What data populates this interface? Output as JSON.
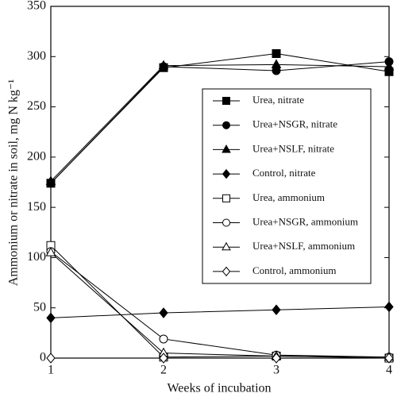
{
  "chart_data": {
    "type": "line",
    "x_label": "Weeks of incubation",
    "y_label": "Ammonium or nitrate in soil, mg N kg⁻¹",
    "x": [
      1,
      2,
      3,
      4
    ],
    "xlim": [
      1,
      4
    ],
    "xticks": [
      1,
      2,
      3,
      4
    ],
    "ylim": [
      0,
      350
    ],
    "yticks": [
      0,
      50,
      100,
      150,
      200,
      250,
      300,
      350
    ],
    "legend": "right",
    "series": [
      {
        "name": "Urea, nitrate",
        "color": "#000000",
        "marker": "square",
        "filled": true,
        "values": [
          174,
          289,
          303,
          285
        ]
      },
      {
        "name": "Urea+NSGR, nitrate",
        "color": "#000000",
        "marker": "circle",
        "filled": true,
        "values": [
          174,
          290,
          286,
          295
        ]
      },
      {
        "name": "Urea+NSLF, nitrate",
        "color": "#000000",
        "marker": "triangle",
        "filled": true,
        "values": [
          176,
          291,
          292,
          290
        ]
      },
      {
        "name": "Control, nitrate",
        "color": "#000000",
        "marker": "diamond",
        "filled": true,
        "values": [
          40,
          45,
          48,
          51
        ]
      },
      {
        "name": "Urea, ammonium",
        "color": "#000000",
        "marker": "square",
        "filled": false,
        "values": [
          112,
          1,
          2,
          0
        ]
      },
      {
        "name": "Urea+NSGR, ammonium",
        "color": "#000000",
        "marker": "circle",
        "filled": false,
        "values": [
          106,
          19,
          3,
          1
        ]
      },
      {
        "name": "Urea+NSLF, ammonium",
        "color": "#000000",
        "marker": "triangle",
        "filled": false,
        "values": [
          105,
          5,
          2,
          1
        ]
      },
      {
        "name": "Control, ammonium",
        "color": "#000000",
        "marker": "diamond",
        "filled": false,
        "values": [
          0,
          0,
          0,
          0
        ]
      }
    ]
  }
}
